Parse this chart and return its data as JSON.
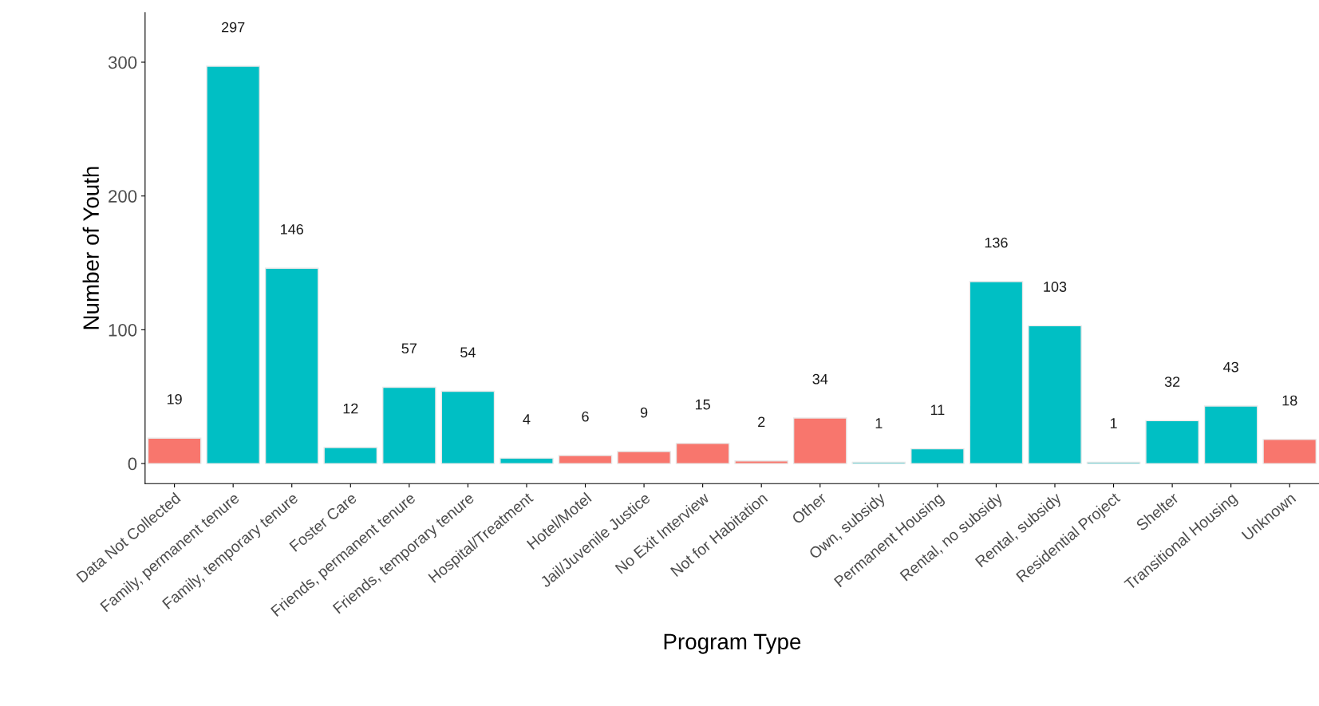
{
  "chart_data": {
    "type": "bar",
    "xlabel": "Program Type",
    "ylabel": "Number of Youth",
    "categories": [
      "Data Not Collected",
      "Family, permanent tenure",
      "Family, temporary tenure",
      "Foster Care",
      "Friends, permanent tenure",
      "Friends, temporary tenure",
      "Hospital/Treatment",
      "Hotel/Motel",
      "Jail/Juvenile Justice",
      "No Exit Interview",
      "Not for Habitation",
      "Other",
      "Own, subsidy",
      "Permanent Housing",
      "Rental, no subsidy",
      "Rental, subsidy",
      "Residential Project",
      "Shelter",
      "Transitional Housing",
      "Unknown"
    ],
    "values": [
      19,
      297,
      146,
      12,
      57,
      54,
      4,
      6,
      9,
      15,
      2,
      34,
      1,
      11,
      136,
      103,
      1,
      32,
      43,
      18
    ],
    "colors": [
      "#f8766d",
      "#00bfc4",
      "#00bfc4",
      "#00bfc4",
      "#00bfc4",
      "#00bfc4",
      "#00bfc4",
      "#f8766d",
      "#f8766d",
      "#f8766d",
      "#f8766d",
      "#f8766d",
      "#00bfc4",
      "#00bfc4",
      "#00bfc4",
      "#00bfc4",
      "#00bfc4",
      "#00bfc4",
      "#00bfc4",
      "#f8766d"
    ],
    "ylim": [
      -15,
      337
    ],
    "yticks": [
      0,
      100,
      200,
      300
    ],
    "grid": false,
    "legend": false,
    "data_labels": true
  }
}
